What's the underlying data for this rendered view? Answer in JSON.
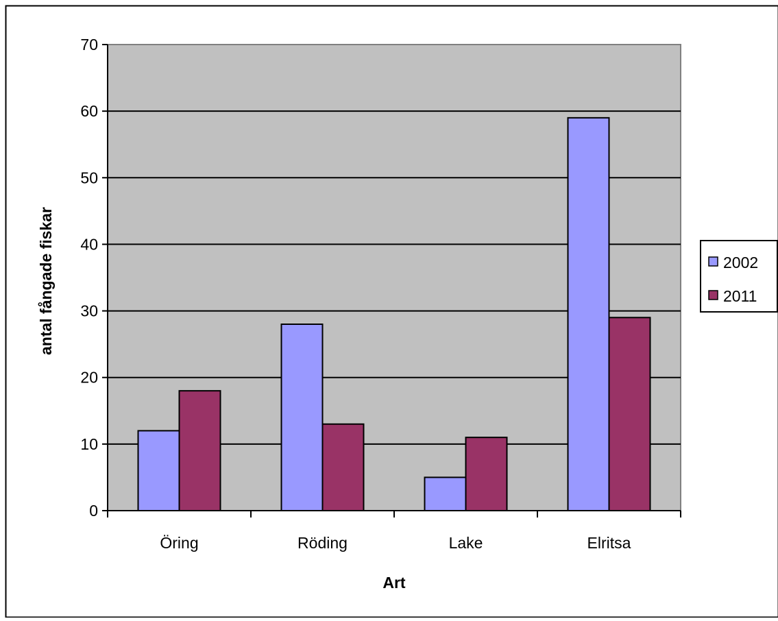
{
  "chart_data": {
    "type": "bar",
    "title": "",
    "xlabel": "Art",
    "ylabel": "antal fångade fiskar",
    "categories": [
      "Öring",
      "Röding",
      "Lake",
      "Elritsa"
    ],
    "series": [
      {
        "name": "2002",
        "values": [
          12,
          28,
          5,
          59
        ],
        "color": "#9999ff"
      },
      {
        "name": "2011",
        "values": [
          18,
          13,
          11,
          29
        ],
        "color": "#993366"
      }
    ],
    "ylim": [
      0,
      70
    ],
    "yticks": [
      "0",
      "10",
      "20",
      "30",
      "40",
      "50",
      "60",
      "70"
    ],
    "grid": true,
    "legend_position": "right",
    "plot_background": "#c0c0c0"
  }
}
